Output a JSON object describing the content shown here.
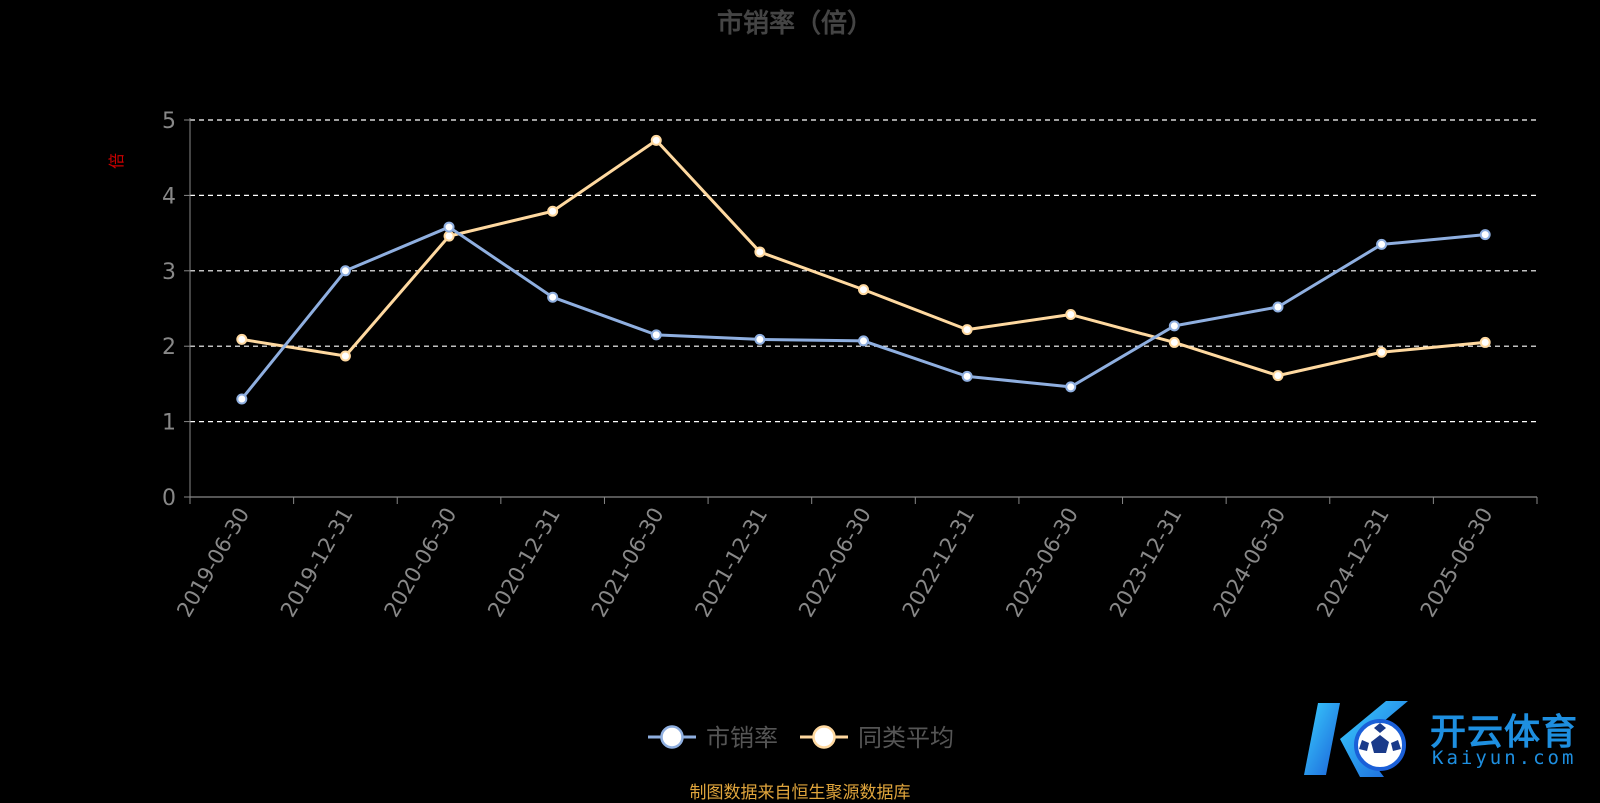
{
  "chart_data": {
    "type": "line",
    "title": "市销率（倍）",
    "ylabel": "倍",
    "ylim": [
      0,
      5
    ],
    "yticks": [
      0,
      1,
      2,
      3,
      4,
      5
    ],
    "grid": true,
    "legend_position": "bottom-center",
    "categories": [
      "2019-06-30",
      "2019-12-31",
      "2020-06-30",
      "2020-12-31",
      "2021-06-30",
      "2021-12-31",
      "2022-06-30",
      "2022-12-31",
      "2023-06-30",
      "2023-12-31",
      "2024-06-30",
      "2024-12-31",
      "2025-06-30"
    ],
    "series": [
      {
        "name": "市销率",
        "color": "#8fafe0",
        "values": [
          1.3,
          3.0,
          3.58,
          2.65,
          2.15,
          2.09,
          2.07,
          1.6,
          1.46,
          2.27,
          2.52,
          3.35,
          3.48
        ]
      },
      {
        "name": "同类平均",
        "color": "#ffd9a0",
        "values": [
          2.09,
          1.87,
          3.46,
          3.79,
          4.73,
          3.25,
          2.75,
          2.22,
          2.42,
          2.05,
          1.61,
          1.92,
          2.05
        ]
      }
    ]
  },
  "colors": {
    "axis": "#888888",
    "grid": "#ffffff",
    "title": "#444444",
    "ylabel": "#cc0000"
  },
  "footnote": "制图数据来自恒生聚源数据库",
  "watermark": {
    "brand": "开云体育",
    "domain": "Kaiyun.com"
  }
}
